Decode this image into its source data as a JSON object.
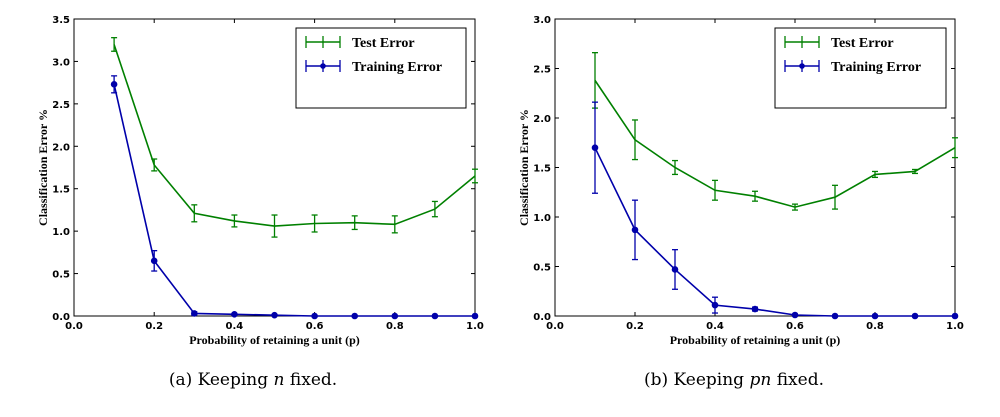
{
  "chart_data": [
    {
      "type": "line",
      "xlabel": "Probability of retaining a unit (p)",
      "ylabel": "Classification Error %",
      "xlim": [
        0.0,
        1.0
      ],
      "ylim": [
        0.0,
        3.5
      ],
      "xticks": [
        "0.0",
        "0.2",
        "0.4",
        "0.6",
        "0.8",
        "1.0"
      ],
      "yticks": [
        "0.0",
        "0.5",
        "1.0",
        "1.5",
        "2.0",
        "2.5",
        "3.0",
        "3.5"
      ],
      "legend_position": "top-right",
      "series": [
        {
          "name": "Test Error",
          "color": "#008000",
          "x": [
            0.1,
            0.2,
            0.3,
            0.4,
            0.5,
            0.6,
            0.7,
            0.8,
            0.9,
            1.0
          ],
          "y": [
            3.2,
            1.78,
            1.21,
            1.12,
            1.06,
            1.09,
            1.1,
            1.08,
            1.26,
            1.65
          ],
          "err": [
            0.08,
            0.07,
            0.1,
            0.07,
            0.13,
            0.1,
            0.08,
            0.1,
            0.09,
            0.08
          ],
          "marker": "none"
        },
        {
          "name": "Training Error",
          "color": "#0000aa",
          "x": [
            0.1,
            0.2,
            0.3,
            0.4,
            0.5,
            0.6,
            0.7,
            0.8,
            0.9,
            1.0
          ],
          "y": [
            2.73,
            0.65,
            0.03,
            0.02,
            0.01,
            0.0,
            0.0,
            0.0,
            0.0,
            0.0
          ],
          "err": [
            0.1,
            0.12,
            0.02,
            0.01,
            0.0,
            0.0,
            0.0,
            0.0,
            0.0,
            0.0
          ],
          "marker": "circle"
        }
      ]
    },
    {
      "type": "line",
      "xlabel": "Probability of retaining a unit (p)",
      "ylabel": "Classification Error %",
      "xlim": [
        0.0,
        1.0
      ],
      "ylim": [
        0.0,
        3.0
      ],
      "xticks": [
        "0.0",
        "0.2",
        "0.4",
        "0.6",
        "0.8",
        "1.0"
      ],
      "yticks": [
        "0.0",
        "0.5",
        "1.0",
        "1.5",
        "2.0",
        "2.5",
        "3.0"
      ],
      "legend_position": "top-right",
      "series": [
        {
          "name": "Test Error",
          "color": "#008000",
          "x": [
            0.1,
            0.2,
            0.3,
            0.4,
            0.5,
            0.6,
            0.7,
            0.8,
            0.9,
            1.0
          ],
          "y": [
            2.38,
            1.78,
            1.5,
            1.27,
            1.21,
            1.1,
            1.2,
            1.43,
            1.46,
            1.7
          ],
          "err": [
            0.28,
            0.2,
            0.07,
            0.1,
            0.05,
            0.03,
            0.12,
            0.03,
            0.02,
            0.1
          ],
          "marker": "none"
        },
        {
          "name": "Training Error",
          "color": "#0000aa",
          "x": [
            0.1,
            0.2,
            0.3,
            0.4,
            0.5,
            0.6,
            0.7,
            0.8,
            0.9,
            1.0
          ],
          "y": [
            1.7,
            0.87,
            0.47,
            0.11,
            0.07,
            0.01,
            0.0,
            0.0,
            0.0,
            0.0
          ],
          "err": [
            0.46,
            0.3,
            0.2,
            0.08,
            0.02,
            0.01,
            0.0,
            0.0,
            0.0,
            0.0
          ],
          "marker": "circle"
        }
      ]
    }
  ],
  "captions": [
    {
      "prefix": "(a) Keeping ",
      "var": "n",
      "suffix": " fixed."
    },
    {
      "prefix": "(b) Keeping ",
      "var": "pn",
      "suffix": " fixed."
    }
  ]
}
